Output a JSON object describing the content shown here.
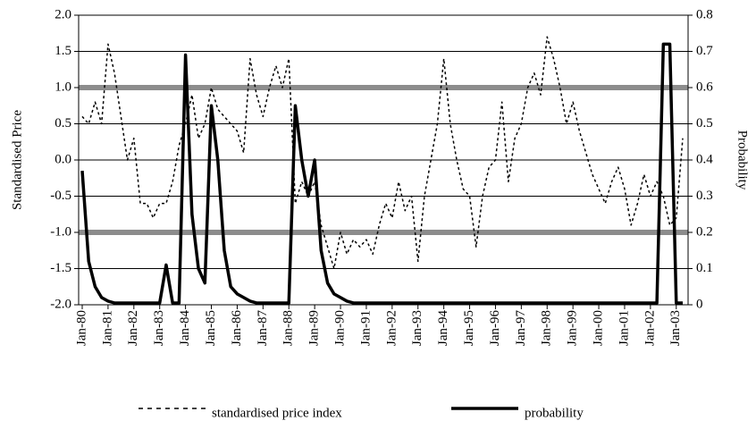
{
  "chart_data": {
    "type": "line",
    "categories": [
      "Jan-80",
      null,
      null,
      null,
      "Jan-81",
      null,
      null,
      null,
      "Jan-82",
      null,
      null,
      null,
      "Jan-83",
      null,
      null,
      null,
      "Jan-84",
      null,
      null,
      null,
      "Jan-85",
      null,
      null,
      null,
      "Jan-86",
      null,
      null,
      null,
      "Jan-87",
      null,
      null,
      null,
      "Jan-88",
      null,
      null,
      null,
      "Jan-89",
      null,
      null,
      null,
      "Jan-90",
      null,
      null,
      null,
      "Jan-91",
      null,
      null,
      null,
      "Jan-92",
      null,
      null,
      null,
      "Jan-93",
      null,
      null,
      null,
      "Jan-94",
      null,
      null,
      null,
      "Jan-95",
      null,
      null,
      null,
      "Jan-96",
      null,
      null,
      null,
      "Jan-97",
      null,
      null,
      null,
      "Jan-98",
      null,
      null,
      null,
      "Jan-99",
      null,
      null,
      null,
      "Jan-00",
      null,
      null,
      null,
      "Jan-01",
      null,
      null,
      null,
      "Jan-02",
      null,
      null,
      null,
      "Jan-03",
      null
    ],
    "series": [
      {
        "name": "standardised price index",
        "color": "#000000",
        "line_style": "dashed",
        "line_width": 1.5,
        "values": [
          0.6,
          0.5,
          0.8,
          0.5,
          1.6,
          1.2,
          0.6,
          0.0,
          0.3,
          -0.6,
          -0.6,
          -0.8,
          -0.6,
          -0.6,
          -0.3,
          0.2,
          0.5,
          0.9,
          0.3,
          0.5,
          1.0,
          0.7,
          0.6,
          0.5,
          0.4,
          0.1,
          1.4,
          0.9,
          0.6,
          1.0,
          1.3,
          1.0,
          1.4,
          -0.6,
          -0.3,
          -0.5,
          -0.3,
          -0.9,
          -1.2,
          -1.5,
          -1.0,
          -1.3,
          -1.1,
          -1.2,
          -1.1,
          -1.3,
          -0.9,
          -0.6,
          -0.8,
          -0.3,
          -0.7,
          -0.5,
          -1.4,
          -0.5,
          0.0,
          0.5,
          1.4,
          0.5,
          0.0,
          -0.4,
          -0.5,
          -1.2,
          -0.5,
          -0.1,
          0.0,
          0.8,
          -0.3,
          0.3,
          0.5,
          1.0,
          1.2,
          0.9,
          1.7,
          1.4,
          1.0,
          0.5,
          0.8,
          0.4,
          0.1,
          -0.2,
          -0.4,
          -0.6,
          -0.3,
          -0.1,
          -0.4,
          -0.9,
          -0.6,
          -0.2,
          -0.5,
          -0.3,
          -0.5,
          -0.9,
          -0.8,
          0.3
        ]
      },
      {
        "name": "probability",
        "color": "#000000",
        "line_style": "solid",
        "line_width": 3.5,
        "axis": "y2",
        "values": [
          0.37,
          0.12,
          0.05,
          0.02,
          0.01,
          0.005,
          0.005,
          0.005,
          0.005,
          0.005,
          0.005,
          0.005,
          0.005,
          0.11,
          0.005,
          0.005,
          0.69,
          0.25,
          0.1,
          0.06,
          0.55,
          0.4,
          0.15,
          0.05,
          0.03,
          0.02,
          0.01,
          0.005,
          0.005,
          0.005,
          0.005,
          0.005,
          0.005,
          0.55,
          0.4,
          0.3,
          0.4,
          0.15,
          0.06,
          0.03,
          0.02,
          0.01,
          0.005,
          0.005,
          0.005,
          0.005,
          0.005,
          0.005,
          0.005,
          0.005,
          0.005,
          0.005,
          0.005,
          0.005,
          0.005,
          0.005,
          0.005,
          0.005,
          0.005,
          0.005,
          0.005,
          0.005,
          0.005,
          0.005,
          0.005,
          0.005,
          0.005,
          0.005,
          0.005,
          0.005,
          0.005,
          0.005,
          0.005,
          0.005,
          0.005,
          0.005,
          0.005,
          0.005,
          0.005,
          0.005,
          0.005,
          0.005,
          0.005,
          0.005,
          0.005,
          0.005,
          0.005,
          0.005,
          0.005,
          0.005,
          0.72,
          0.72,
          0.005,
          0.005
        ]
      }
    ],
    "ylabel": "Standardised Price",
    "y2label": "Probability",
    "ylim": [
      -2,
      2
    ],
    "yticks": [
      {
        "value": -2,
        "label": "-2.0"
      },
      -1.5,
      {
        "value": -1,
        "label": "-1.0"
      },
      -0.5,
      {
        "value": 0,
        "label": "0.0"
      },
      0.5,
      {
        "value": 1,
        "label": "1.0"
      },
      1.5,
      {
        "value": 2,
        "label": "2.0"
      }
    ],
    "y2lim": [
      0,
      0.8
    ],
    "y2ticks": [
      0,
      0.1,
      0.2,
      0.3,
      0.4,
      0.5,
      0.6,
      0.7,
      0.8
    ],
    "reference_lines": [
      1,
      -1
    ],
    "grid": true,
    "legend": "bottom"
  }
}
